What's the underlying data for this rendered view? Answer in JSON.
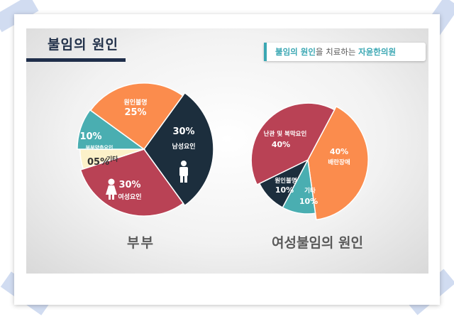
{
  "header": {
    "title": "불임의 원인",
    "subtitle_part1": "불임의 원인",
    "subtitle_part2": "을 치료하는",
    "subtitle_part3": "자윤한의원"
  },
  "colors": {
    "navy": "#1c2e3d",
    "teal": "#4aaeb1",
    "cream": "#fcf1c9",
    "red": "#b94255",
    "orange": "#fb8c4d"
  },
  "chart_data": [
    {
      "type": "pie",
      "title": "부부",
      "slices": [
        {
          "label": "남성요인",
          "value": 30,
          "pct": "30%",
          "color": "#1c2e3d",
          "icon": "male-person-icon"
        },
        {
          "label": "여성요인",
          "value": 30,
          "pct": "30%",
          "color": "#b94255",
          "icon": "female-person-icon"
        },
        {
          "label": "기타",
          "value": 5,
          "pct": "05%",
          "color": "#fcf1c9"
        },
        {
          "label": "부부양측요인",
          "value": 10,
          "pct": "10%",
          "color": "#4aaeb1"
        },
        {
          "label": "원인불명",
          "value": 25,
          "pct": "25%",
          "color": "#fb8c4d"
        }
      ]
    },
    {
      "type": "pie",
      "title": "여성불임의 원인",
      "slices": [
        {
          "label": "배란장애",
          "value": 40,
          "pct": "40%",
          "color": "#fb8c4d"
        },
        {
          "label": "기타",
          "value": 10,
          "pct": "10%",
          "color": "#4aaeb1"
        },
        {
          "label": "원인불명",
          "value": 10,
          "pct": "10%",
          "color": "#1c2e3d"
        },
        {
          "label": "난관 및 복막요인",
          "value": 40,
          "pct": "40%",
          "color": "#b94255"
        }
      ]
    }
  ]
}
